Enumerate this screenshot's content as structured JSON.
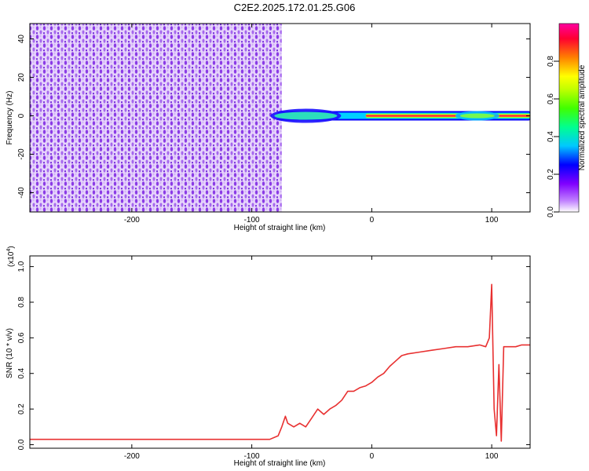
{
  "title": "C2E2.2025.172.01.25.G06",
  "colors": {
    "snr_line": "#e83030",
    "spectrum_bg": "#8a2be2"
  },
  "chart_data": [
    {
      "type": "heatmap",
      "xlabel": "Height of straight line (km)",
      "ylabel": "Frequency (Hz)",
      "xlim": [
        -285,
        132
      ],
      "ylim": [
        -50,
        48
      ],
      "xticks": [
        -200,
        -100,
        0,
        100
      ],
      "xtick_labels": [
        "-200",
        "-100",
        "0",
        "100"
      ],
      "yticks": [
        -40,
        -20,
        0,
        20,
        40
      ],
      "ytick_labels": [
        "-40",
        "-20",
        "0",
        "20",
        "40"
      ],
      "colorbar": {
        "label": "Normalized spectral amplitude",
        "range": [
          0,
          1
        ],
        "ticks": [
          0,
          0.2,
          0.4,
          0.6,
          0.8
        ],
        "tick_labels": [
          "0.0",
          "0.2",
          "0.4",
          "0.6",
          "0.8"
        ],
        "colormap": [
          "#ffffff",
          "#8000ff",
          "#0000ff",
          "#00c8ff",
          "#00ff80",
          "#80ff00",
          "#ffff00",
          "#ff8000",
          "#ff0040",
          "#ff00a0"
        ]
      },
      "regions": [
        {
          "name": "noise",
          "x_range": [
            -285,
            -75
          ],
          "y_range": [
            -50,
            48
          ],
          "amplitude": 0.15
        },
        {
          "name": "signal",
          "x_range": [
            -78,
            132
          ],
          "center_freq_hz": 0,
          "amplitude": 1.0
        }
      ]
    },
    {
      "type": "line",
      "xlabel": "Height of straight line (km)",
      "ylabel": "SNR (10 * v/v)",
      "yscale_label": "(x10",
      "yscale_exp": "4",
      "xlim": [
        -285,
        132
      ],
      "ylim": [
        -0.02,
        1.06
      ],
      "xticks": [
        -200,
        -100,
        0,
        100
      ],
      "xtick_labels": [
        "-200",
        "-100",
        "0",
        "100"
      ],
      "yticks": [
        0,
        0.2,
        0.4,
        0.6,
        0.8,
        1.0
      ],
      "ytick_labels": [
        "0.0",
        "0.2",
        "0.4",
        "0.6",
        "0.8",
        "1.0"
      ],
      "series": [
        {
          "x": [
            -285,
            -250,
            -200,
            -150,
            -110,
            -85,
            -78,
            -75,
            -72,
            -70,
            -65,
            -60,
            -55,
            -50,
            -45,
            -40,
            -35,
            -30,
            -25,
            -20,
            -15,
            -10,
            -5,
            0,
            5,
            10,
            15,
            20,
            25,
            30,
            40,
            50,
            60,
            70,
            80,
            90,
            95,
            98,
            100,
            102,
            104,
            106,
            108,
            110,
            115,
            120,
            125,
            132
          ],
          "y": [
            0.03,
            0.03,
            0.03,
            0.03,
            0.03,
            0.03,
            0.05,
            0.1,
            0.16,
            0.12,
            0.1,
            0.12,
            0.1,
            0.15,
            0.2,
            0.17,
            0.2,
            0.22,
            0.25,
            0.3,
            0.3,
            0.32,
            0.33,
            0.35,
            0.38,
            0.4,
            0.44,
            0.47,
            0.5,
            0.51,
            0.52,
            0.53,
            0.54,
            0.55,
            0.55,
            0.56,
            0.55,
            0.6,
            0.9,
            0.2,
            0.05,
            0.45,
            0.02,
            0.55,
            0.55,
            0.55,
            0.56,
            0.56
          ]
        }
      ]
    }
  ]
}
